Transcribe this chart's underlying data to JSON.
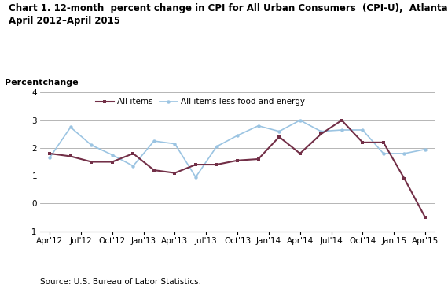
{
  "title_line1": "Chart 1. 12-month  percent change in CPI for All Urban Consumers  (CPI-U),  Atlanta,",
  "title_line2": "April 2012–April 2015",
  "ylabel": "Percentchange",
  "source": "Source: U.S. Bureau of Labor Statistics.",
  "x_labels": [
    "Apr'12",
    "Jul'12",
    "Oct'12",
    "Jan'13",
    "Apr'13",
    "Jul'13",
    "Oct'13",
    "Jan'14",
    "Apr'14",
    "Jul'14",
    "Oct'14",
    "Jan'15",
    "Apr'15"
  ],
  "all_items": [
    1.8,
    1.7,
    1.5,
    1.5,
    1.8,
    1.2,
    1.1,
    1.4,
    1.4,
    1.55,
    1.6,
    2.4,
    1.8,
    2.5,
    3.0,
    2.2,
    2.2,
    0.9,
    -0.5
  ],
  "all_items_less": [
    1.65,
    2.75,
    2.1,
    1.75,
    1.35,
    2.25,
    2.15,
    0.95,
    2.05,
    2.45,
    2.8,
    2.6,
    3.0,
    2.6,
    2.65,
    2.65,
    1.8,
    1.8,
    1.95
  ],
  "all_items_color": "#722F47",
  "all_items_less_color": "#9BC4E2",
  "ylim": [
    -1,
    4
  ],
  "yticks": [
    -1,
    0,
    1,
    2,
    3,
    4
  ],
  "legend_all_items": "All items",
  "legend_all_items_less": "All items less food and energy",
  "n_data": 19,
  "n_ticks": 13,
  "title_fontsize": 8.5,
  "tick_fontsize": 7.5,
  "source_fontsize": 7.5,
  "ylabel_fontsize": 8.0,
  "legend_fontsize": 7.5
}
